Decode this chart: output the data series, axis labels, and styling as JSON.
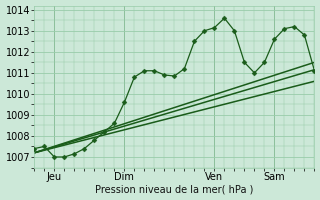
{
  "title": "",
  "xlabel": "Pression niveau de la mer( hPa )",
  "ylabel": "",
  "ylim": [
    1006.5,
    1014.2
  ],
  "xlim": [
    0,
    28
  ],
  "background_color": "#cce8d8",
  "grid_color": "#99ccaa",
  "line_color": "#1a5c1a",
  "xticks": [
    2,
    9,
    18,
    24
  ],
  "xtick_labels": [
    "Jeu",
    "Dim",
    "Ven",
    "Sam"
  ],
  "yticks": [
    1007,
    1008,
    1009,
    1010,
    1011,
    1012,
    1013,
    1014
  ],
  "line1_x": [
    0,
    1,
    2,
    3,
    4,
    5,
    6,
    7,
    8,
    9,
    10,
    11,
    12,
    13,
    14,
    15,
    16,
    17,
    18,
    19,
    20,
    21,
    22,
    23,
    24,
    25,
    26,
    27,
    28
  ],
  "line1_y": [
    1007.4,
    1007.5,
    1007.0,
    1007.0,
    1007.15,
    1007.4,
    1007.8,
    1008.2,
    1008.6,
    1009.6,
    1010.8,
    1011.1,
    1011.1,
    1010.9,
    1010.85,
    1011.2,
    1012.5,
    1013.0,
    1013.15,
    1013.6,
    1013.0,
    1011.5,
    1011.0,
    1011.5,
    1012.6,
    1013.1,
    1013.2,
    1012.8,
    1011.1
  ],
  "line2_x": [
    0,
    28
  ],
  "line2_y": [
    1007.2,
    1011.15
  ],
  "line3_x": [
    0,
    28
  ],
  "line3_y": [
    1007.2,
    1010.6
  ],
  "line4_x": [
    0,
    28
  ],
  "line4_y": [
    1007.2,
    1011.5
  ],
  "vline_x": [
    2,
    9,
    18,
    24
  ],
  "font_size": 7,
  "marker": "D",
  "marker_size": 2.5,
  "lw_main": 0.9,
  "lw_trend": 1.1
}
